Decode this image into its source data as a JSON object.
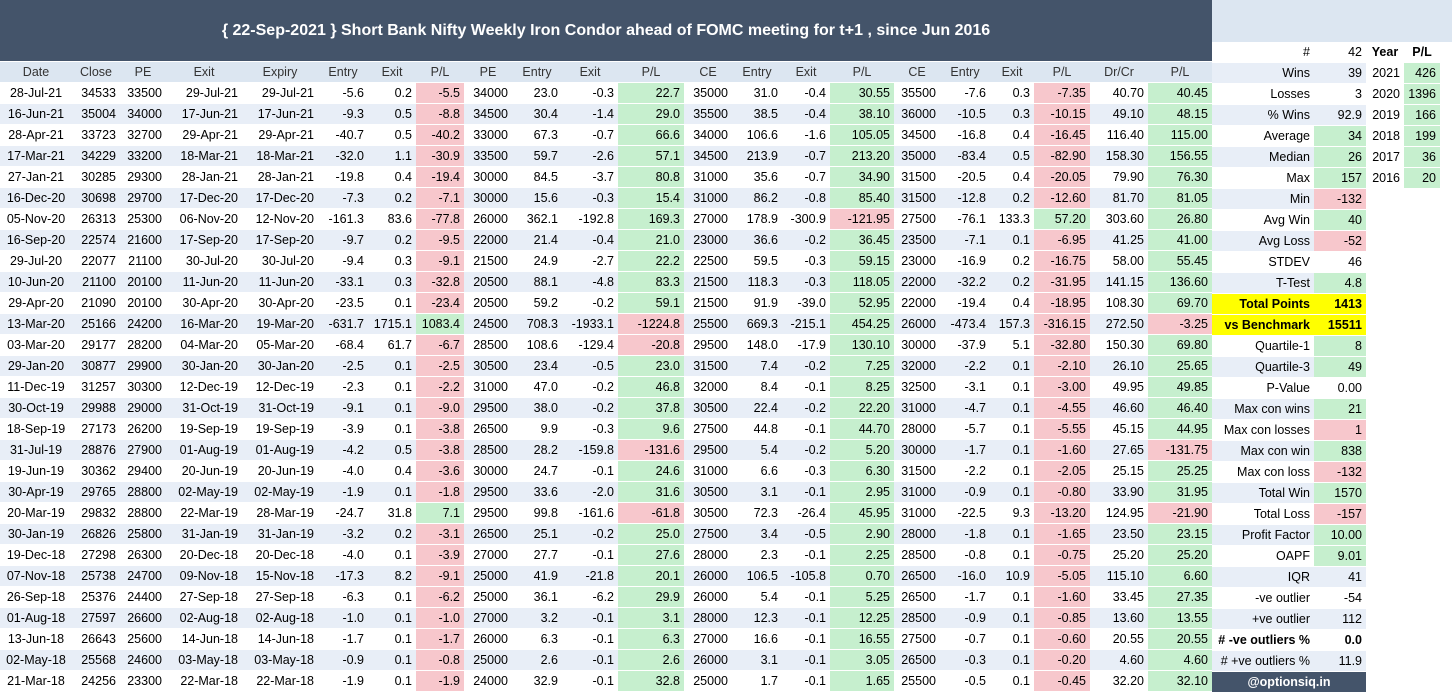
{
  "title": "{ 22-Sep-2021 } Short Bank Nifty Weekly Iron Condor ahead of FOMC meeting for t+1 , since Jun 2016",
  "headers": [
    "Date",
    "Close",
    "PE",
    "Exit",
    "Expiry",
    "Entry",
    "Exit",
    "P/L",
    "PE",
    "Entry",
    "Exit",
    "P/L",
    "CE",
    "Entry",
    "Exit",
    "P/L",
    "CE",
    "Entry",
    "Exit",
    "P/L",
    "Dr/Cr",
    "P/L"
  ],
  "rows": [
    [
      "28-Jul-21",
      "34533",
      "33500",
      "29-Jul-21",
      "29-Jul-21",
      "-5.6",
      "0.2",
      "-5.5",
      "34000",
      "23.0",
      "-0.3",
      "22.7",
      "35000",
      "31.0",
      "-0.4",
      "30.55",
      "35500",
      "-7.6",
      "0.3",
      "-7.35",
      "40.70",
      "40.45"
    ],
    [
      "16-Jun-21",
      "35004",
      "34000",
      "17-Jun-21",
      "17-Jun-21",
      "-9.3",
      "0.5",
      "-8.8",
      "34500",
      "30.4",
      "-1.4",
      "29.0",
      "35500",
      "38.5",
      "-0.4",
      "38.10",
      "36000",
      "-10.5",
      "0.3",
      "-10.15",
      "49.10",
      "48.15"
    ],
    [
      "28-Apr-21",
      "33723",
      "32700",
      "29-Apr-21",
      "29-Apr-21",
      "-40.7",
      "0.5",
      "-40.2",
      "33000",
      "67.3",
      "-0.7",
      "66.6",
      "34000",
      "106.6",
      "-1.6",
      "105.05",
      "34500",
      "-16.8",
      "0.4",
      "-16.45",
      "116.40",
      "115.00"
    ],
    [
      "17-Mar-21",
      "34229",
      "33200",
      "18-Mar-21",
      "18-Mar-21",
      "-32.0",
      "1.1",
      "-30.9",
      "33500",
      "59.7",
      "-2.6",
      "57.1",
      "34500",
      "213.9",
      "-0.7",
      "213.20",
      "35000",
      "-83.4",
      "0.5",
      "-82.90",
      "158.30",
      "156.55"
    ],
    [
      "27-Jan-21",
      "30285",
      "29300",
      "28-Jan-21",
      "28-Jan-21",
      "-19.8",
      "0.4",
      "-19.4",
      "30000",
      "84.5",
      "-3.7",
      "80.8",
      "31000",
      "35.6",
      "-0.7",
      "34.90",
      "31500",
      "-20.5",
      "0.4",
      "-20.05",
      "79.90",
      "76.30"
    ],
    [
      "16-Dec-20",
      "30698",
      "29700",
      "17-Dec-20",
      "17-Dec-20",
      "-7.3",
      "0.2",
      "-7.1",
      "30000",
      "15.6",
      "-0.3",
      "15.4",
      "31000",
      "86.2",
      "-0.8",
      "85.40",
      "31500",
      "-12.8",
      "0.2",
      "-12.60",
      "81.70",
      "81.05"
    ],
    [
      "05-Nov-20",
      "26313",
      "25300",
      "06-Nov-20",
      "12-Nov-20",
      "-161.3",
      "83.6",
      "-77.8",
      "26000",
      "362.1",
      "-192.8",
      "169.3",
      "27000",
      "178.9",
      "-300.9",
      "-121.95",
      "27500",
      "-76.1",
      "133.3",
      "57.20",
      "303.60",
      "26.80"
    ],
    [
      "16-Sep-20",
      "22574",
      "21600",
      "17-Sep-20",
      "17-Sep-20",
      "-9.7",
      "0.2",
      "-9.5",
      "22000",
      "21.4",
      "-0.4",
      "21.0",
      "23000",
      "36.6",
      "-0.2",
      "36.45",
      "23500",
      "-7.1",
      "0.1",
      "-6.95",
      "41.25",
      "41.00"
    ],
    [
      "29-Jul-20",
      "22077",
      "21100",
      "30-Jul-20",
      "30-Jul-20",
      "-9.4",
      "0.3",
      "-9.1",
      "21500",
      "24.9",
      "-2.7",
      "22.2",
      "22500",
      "59.5",
      "-0.3",
      "59.15",
      "23000",
      "-16.9",
      "0.2",
      "-16.75",
      "58.00",
      "55.45"
    ],
    [
      "10-Jun-20",
      "21100",
      "20100",
      "11-Jun-20",
      "11-Jun-20",
      "-33.1",
      "0.3",
      "-32.8",
      "20500",
      "88.1",
      "-4.8",
      "83.3",
      "21500",
      "118.3",
      "-0.3",
      "118.05",
      "22000",
      "-32.2",
      "0.2",
      "-31.95",
      "141.15",
      "136.60"
    ],
    [
      "29-Apr-20",
      "21090",
      "20100",
      "30-Apr-20",
      "30-Apr-20",
      "-23.5",
      "0.1",
      "-23.4",
      "20500",
      "59.2",
      "-0.2",
      "59.1",
      "21500",
      "91.9",
      "-39.0",
      "52.95",
      "22000",
      "-19.4",
      "0.4",
      "-18.95",
      "108.30",
      "69.70"
    ],
    [
      "13-Mar-20",
      "25166",
      "24200",
      "16-Mar-20",
      "19-Mar-20",
      "-631.7",
      "1715.1",
      "1083.4",
      "24500",
      "708.3",
      "-1933.1",
      "-1224.8",
      "25500",
      "669.3",
      "-215.1",
      "454.25",
      "26000",
      "-473.4",
      "157.3",
      "-316.15",
      "272.50",
      "-3.25"
    ],
    [
      "03-Mar-20",
      "29177",
      "28200",
      "04-Mar-20",
      "05-Mar-20",
      "-68.4",
      "61.7",
      "-6.7",
      "28500",
      "108.6",
      "-129.4",
      "-20.8",
      "29500",
      "148.0",
      "-17.9",
      "130.10",
      "30000",
      "-37.9",
      "5.1",
      "-32.80",
      "150.30",
      "69.80"
    ],
    [
      "29-Jan-20",
      "30877",
      "29900",
      "30-Jan-20",
      "30-Jan-20",
      "-2.5",
      "0.1",
      "-2.5",
      "30500",
      "23.4",
      "-0.5",
      "23.0",
      "31500",
      "7.4",
      "-0.2",
      "7.25",
      "32000",
      "-2.2",
      "0.1",
      "-2.10",
      "26.10",
      "25.65"
    ],
    [
      "11-Dec-19",
      "31257",
      "30300",
      "12-Dec-19",
      "12-Dec-19",
      "-2.3",
      "0.1",
      "-2.2",
      "31000",
      "47.0",
      "-0.2",
      "46.8",
      "32000",
      "8.4",
      "-0.1",
      "8.25",
      "32500",
      "-3.1",
      "0.1",
      "-3.00",
      "49.95",
      "49.85"
    ],
    [
      "30-Oct-19",
      "29988",
      "29000",
      "31-Oct-19",
      "31-Oct-19",
      "-9.1",
      "0.1",
      "-9.0",
      "29500",
      "38.0",
      "-0.2",
      "37.8",
      "30500",
      "22.4",
      "-0.2",
      "22.20",
      "31000",
      "-4.7",
      "0.1",
      "-4.55",
      "46.60",
      "46.40"
    ],
    [
      "18-Sep-19",
      "27173",
      "26200",
      "19-Sep-19",
      "19-Sep-19",
      "-3.9",
      "0.1",
      "-3.8",
      "26500",
      "9.9",
      "-0.3",
      "9.6",
      "27500",
      "44.8",
      "-0.1",
      "44.70",
      "28000",
      "-5.7",
      "0.1",
      "-5.55",
      "45.15",
      "44.95"
    ],
    [
      "31-Jul-19",
      "28876",
      "27900",
      "01-Aug-19",
      "01-Aug-19",
      "-4.2",
      "0.5",
      "-3.8",
      "28500",
      "28.2",
      "-159.8",
      "-131.6",
      "29500",
      "5.4",
      "-0.2",
      "5.20",
      "30000",
      "-1.7",
      "0.1",
      "-1.60",
      "27.65",
      "-131.75"
    ],
    [
      "19-Jun-19",
      "30362",
      "29400",
      "20-Jun-19",
      "20-Jun-19",
      "-4.0",
      "0.4",
      "-3.6",
      "30000",
      "24.7",
      "-0.1",
      "24.6",
      "31000",
      "6.6",
      "-0.3",
      "6.30",
      "31500",
      "-2.2",
      "0.1",
      "-2.05",
      "25.15",
      "25.25"
    ],
    [
      "30-Apr-19",
      "29765",
      "28800",
      "02-May-19",
      "02-May-19",
      "-1.9",
      "0.1",
      "-1.8",
      "29500",
      "33.6",
      "-2.0",
      "31.6",
      "30500",
      "3.1",
      "-0.1",
      "2.95",
      "31000",
      "-0.9",
      "0.1",
      "-0.80",
      "33.90",
      "31.95"
    ],
    [
      "20-Mar-19",
      "29832",
      "28800",
      "22-Mar-19",
      "28-Mar-19",
      "-24.7",
      "31.8",
      "7.1",
      "29500",
      "99.8",
      "-161.6",
      "-61.8",
      "30500",
      "72.3",
      "-26.4",
      "45.95",
      "31000",
      "-22.5",
      "9.3",
      "-13.20",
      "124.95",
      "-21.90"
    ],
    [
      "30-Jan-19",
      "26826",
      "25800",
      "31-Jan-19",
      "31-Jan-19",
      "-3.2",
      "0.2",
      "-3.1",
      "26500",
      "25.1",
      "-0.2",
      "25.0",
      "27500",
      "3.4",
      "-0.5",
      "2.90",
      "28000",
      "-1.8",
      "0.1",
      "-1.65",
      "23.50",
      "23.15"
    ],
    [
      "19-Dec-18",
      "27298",
      "26300",
      "20-Dec-18",
      "20-Dec-18",
      "-4.0",
      "0.1",
      "-3.9",
      "27000",
      "27.7",
      "-0.1",
      "27.6",
      "28000",
      "2.3",
      "-0.1",
      "2.25",
      "28500",
      "-0.8",
      "0.1",
      "-0.75",
      "25.20",
      "25.20"
    ],
    [
      "07-Nov-18",
      "25738",
      "24700",
      "09-Nov-18",
      "15-Nov-18",
      "-17.3",
      "8.2",
      "-9.1",
      "25000",
      "41.9",
      "-21.8",
      "20.1",
      "26000",
      "106.5",
      "-105.8",
      "0.70",
      "26500",
      "-16.0",
      "10.9",
      "-5.05",
      "115.10",
      "6.60"
    ],
    [
      "26-Sep-18",
      "25376",
      "24400",
      "27-Sep-18",
      "27-Sep-18",
      "-6.3",
      "0.1",
      "-6.2",
      "25000",
      "36.1",
      "-6.2",
      "29.9",
      "26000",
      "5.4",
      "-0.1",
      "5.25",
      "26500",
      "-1.7",
      "0.1",
      "-1.60",
      "33.45",
      "27.35"
    ],
    [
      "01-Aug-18",
      "27597",
      "26600",
      "02-Aug-18",
      "02-Aug-18",
      "-1.0",
      "0.1",
      "-1.0",
      "27000",
      "3.2",
      "-0.1",
      "3.1",
      "28000",
      "12.3",
      "-0.1",
      "12.25",
      "28500",
      "-0.9",
      "0.1",
      "-0.85",
      "13.60",
      "13.55"
    ],
    [
      "13-Jun-18",
      "26643",
      "25600",
      "14-Jun-18",
      "14-Jun-18",
      "-1.7",
      "0.1",
      "-1.7",
      "26000",
      "6.3",
      "-0.1",
      "6.3",
      "27000",
      "16.6",
      "-0.1",
      "16.55",
      "27500",
      "-0.7",
      "0.1",
      "-0.60",
      "20.55",
      "20.55"
    ],
    [
      "02-May-18",
      "25568",
      "24600",
      "03-May-18",
      "03-May-18",
      "-0.9",
      "0.1",
      "-0.8",
      "25000",
      "2.6",
      "-0.1",
      "2.6",
      "26000",
      "3.1",
      "-0.1",
      "3.05",
      "26500",
      "-0.3",
      "0.1",
      "-0.20",
      "4.60",
      "4.60"
    ],
    [
      "21-Mar-18",
      "24256",
      "23300",
      "22-Mar-18",
      "22-Mar-18",
      "-1.9",
      "0.1",
      "-1.9",
      "24000",
      "32.9",
      "-0.1",
      "32.8",
      "25000",
      "1.7",
      "-0.1",
      "1.65",
      "25500",
      "-0.5",
      "0.1",
      "-0.45",
      "32.20",
      "32.10"
    ]
  ],
  "stats_header": {
    "hash": "#",
    "count": "42",
    "year": "Year",
    "pl": "P/L"
  },
  "stats": [
    {
      "label": "Wins",
      "value": "39",
      "year": "2021",
      "ypl": "426"
    },
    {
      "label": "Losses",
      "value": "3",
      "year": "2020",
      "ypl": "1396"
    },
    {
      "label": "% Wins",
      "value": "92.9",
      "year": "2019",
      "ypl": "166"
    },
    {
      "label": "Average",
      "value": "34",
      "year": "2018",
      "ypl": "199"
    },
    {
      "label": "Median",
      "value": "26",
      "year": "2017",
      "ypl": "36"
    },
    {
      "label": "Max",
      "value": "157",
      "year": "2016",
      "ypl": "20"
    },
    {
      "label": "Min",
      "value": "-132"
    },
    {
      "label": "Avg Win",
      "value": "40"
    },
    {
      "label": "Avg Loss",
      "value": "-52"
    },
    {
      "label": "STDEV",
      "value": "46"
    },
    {
      "label": "T-Test",
      "value": "4.8"
    },
    {
      "label": "Total  Points",
      "value": "1413"
    },
    {
      "label": "vs Benchmark",
      "value": "15511"
    },
    {
      "label": "Quartile-1",
      "value": "8"
    },
    {
      "label": "Quartile-3",
      "value": "49"
    },
    {
      "label": "P-Value",
      "value": "0.00"
    },
    {
      "label": "Max con wins",
      "value": "21"
    },
    {
      "label": "Max con losses",
      "value": "1"
    },
    {
      "label": "Max con win",
      "value": "838"
    },
    {
      "label": "Max con loss",
      "value": "-132"
    },
    {
      "label": "Total Win",
      "value": "1570"
    },
    {
      "label": "Total Loss",
      "value": "-157"
    },
    {
      "label": "Profit Factor",
      "value": "10.00"
    },
    {
      "label": "OAPF",
      "value": "9.01"
    },
    {
      "label": "IQR",
      "value": "41"
    },
    {
      "label": "-ve outlier",
      "value": "-54"
    },
    {
      "label": "+ve outlier",
      "value": "112"
    },
    {
      "label": "# -ve outliers %",
      "value": "0.0"
    },
    {
      "label": "# +ve outliers %",
      "value": "11.9"
    }
  ],
  "brand": "@optionsiq.in",
  "colors": {
    "header": "#44546a",
    "loss": "#f7c7cc",
    "gain": "#c6efce",
    "highlight": "#ffff00"
  }
}
